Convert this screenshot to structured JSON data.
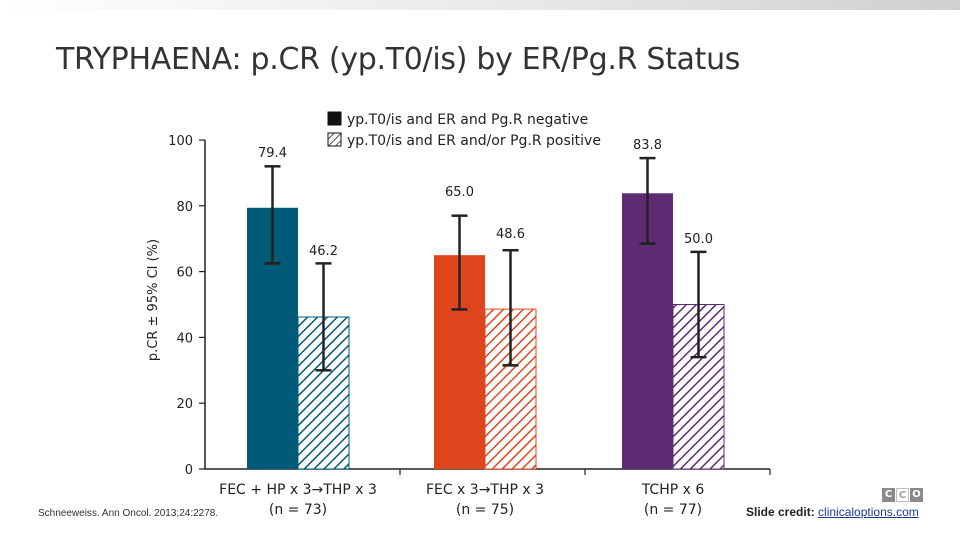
{
  "slide": {
    "title": "TRYPHAENA: p.CR (yp.T0/is) by ER/Pg.R Status",
    "citation": "Schneeweiss. Ann Oncol. 2013;24:2278.",
    "credit_label": "Slide credit:",
    "credit_link": "clinicaloptions.com",
    "logo_text": "CCO"
  },
  "chart_data": {
    "type": "bar",
    "title": "",
    "xlabel": "",
    "ylabel": "p.CR ± 95% CI (%)",
    "ylim": [
      0,
      100
    ],
    "yticks": [
      0,
      20,
      40,
      60,
      80,
      100
    ],
    "categories": [
      {
        "line1": "FEC + HP x 3→THP x 3",
        "line2": "(n = 73)"
      },
      {
        "line1": "FEC x 3→THP x 3",
        "line2": "(n = 75)"
      },
      {
        "line1": "TCHP x 6",
        "line2": "(n = 77)"
      }
    ],
    "colors": [
      "#005a78",
      "#e0461e",
      "#5e2b72"
    ],
    "legend": {
      "position": "top-center",
      "entries": [
        {
          "label": "yp.T0/is and ER and Pg.R negative",
          "style": "solid"
        },
        {
          "label": "yp.T0/is and ER and/or Pg.R positive",
          "style": "hatched"
        }
      ]
    },
    "series": [
      {
        "name": "yp.T0/is and ER and Pg.R negative",
        "style": "solid",
        "values": [
          79.4,
          65.0,
          83.8
        ],
        "labels": [
          "79.4",
          "65.0",
          "83.8"
        ],
        "ci": [
          [
            62.5,
            92.0
          ],
          [
            48.5,
            77.0
          ],
          [
            68.5,
            94.5
          ]
        ]
      },
      {
        "name": "yp.T0/is and ER and/or Pg.R positive",
        "style": "hatched",
        "values": [
          46.2,
          48.6,
          50.0
        ],
        "labels": [
          "46.2",
          "48.6",
          "50.0"
        ],
        "ci": [
          [
            30.0,
            62.5
          ],
          [
            31.5,
            66.5
          ],
          [
            34.0,
            66.0
          ]
        ]
      }
    ]
  }
}
